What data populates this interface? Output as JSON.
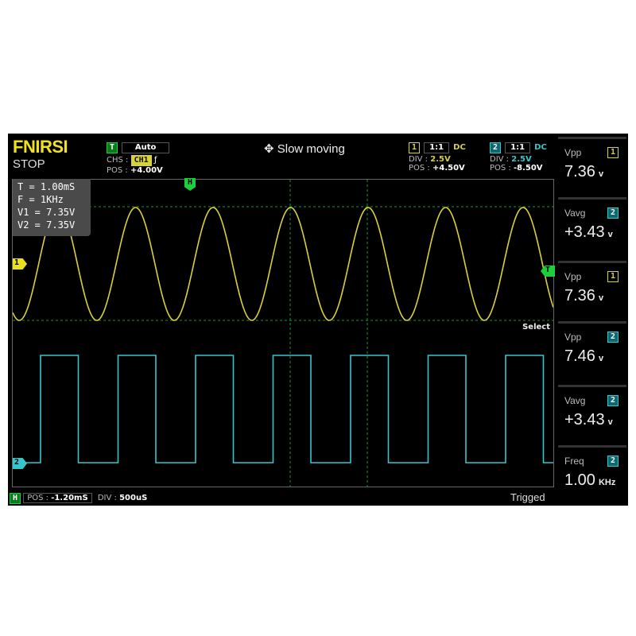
{
  "header": {
    "brand": "FNIRSI",
    "run_state": "STOP",
    "trigger_tag": "T",
    "trigger_mode": "Auto",
    "trigger_source_label": "CHS :",
    "trigger_source": "CH1",
    "trigger_edge_icon": "rising-edge-icon",
    "trigger_edge_glyph": "ƒ",
    "trigger_pos_label": "POS :",
    "trigger_pos": "+4.00V",
    "mode_icon": "move-icon",
    "mode_text": "Slow moving"
  },
  "ch1": {
    "tag": "1",
    "probe": "1:1",
    "coupling": "DC",
    "div_label": "DIV :",
    "div": "2.5V",
    "pos_label": "POS :",
    "pos": "+4.50V",
    "color": "#d7d13a",
    "waveform": "sine"
  },
  "ch2": {
    "tag": "2",
    "probe": "1:1",
    "coupling": "DC",
    "div_label": "DIV :",
    "div": "2.5V",
    "pos_label": "POS :",
    "pos": "-8.50V",
    "color": "#36c6cc",
    "waveform": "square"
  },
  "cursor_info": [
    "T = 1.00mS",
    "F = 1KHz",
    "V1 = 7.35V",
    "V2 = 7.35V"
  ],
  "markers": {
    "h": "H",
    "t": "T",
    "ch1": "1",
    "ch2": "2",
    "select": "Select"
  },
  "measurements": [
    {
      "label": "Vpp",
      "channel": "1",
      "value": "7.36",
      "unit": "v"
    },
    {
      "label": "Vavg",
      "channel": "2",
      "value": "+3.43",
      "unit": "v"
    },
    {
      "label": "Vpp",
      "channel": "1",
      "value": "7.36",
      "unit": "v"
    },
    {
      "label": "Vpp",
      "channel": "2",
      "value": "7.46",
      "unit": "v"
    },
    {
      "label": "Vavg",
      "channel": "2",
      "value": "+3.43",
      "unit": "v"
    },
    {
      "label": "Freq",
      "channel": "2",
      "value": "1.00",
      "unit": "KHz"
    }
  ],
  "footer": {
    "h_tag": "H",
    "pos_label": "POS :",
    "pos": "-1.20mS",
    "div_label": "DIV :",
    "div": "500uS",
    "status": "Trigged"
  }
}
